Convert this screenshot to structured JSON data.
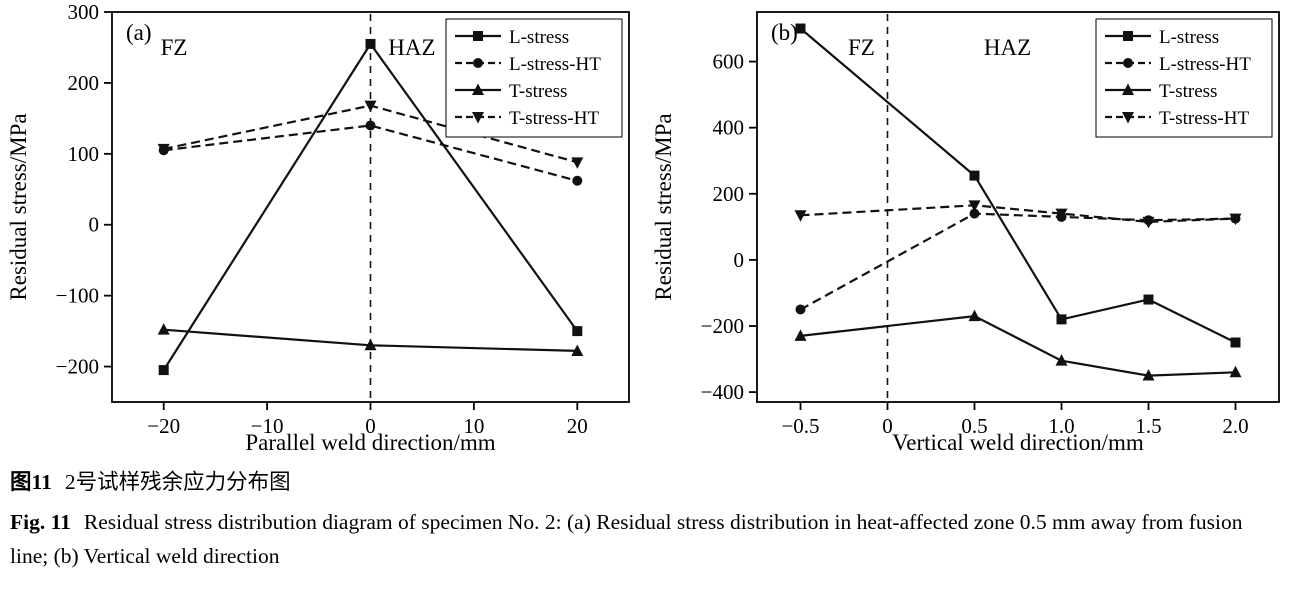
{
  "figure": {
    "caption_cn_label": "图11",
    "caption_cn_text": "2号试样残余应力分布图",
    "caption_en_label": "Fig. 11",
    "caption_en_text": "Residual stress distribution diagram of specimen No. 2: (a) Residual stress distribution in heat-affected zone 0.5 mm away from fusion line; (b) Vertical weld direction"
  },
  "colors": {
    "stroke": "#111111",
    "axis": "#000000",
    "background": "#ffffff"
  },
  "chart_data": [
    {
      "type": "line",
      "panel_label": "(a)",
      "title": "",
      "xlabel": "Parallel weld direction/mm",
      "ylabel": "Residual stress/MPa",
      "xlim": [
        -25,
        25
      ],
      "ylim": [
        -250,
        300
      ],
      "xticks": [
        -20,
        -10,
        0,
        10,
        20
      ],
      "xtick_labels": [
        "−20",
        "−10",
        "0",
        "10",
        "20"
      ],
      "yticks": [
        -200,
        -100,
        0,
        100,
        200,
        300
      ],
      "ytick_labels": [
        "−200",
        "−100",
        "0",
        "100",
        "200",
        "300"
      ],
      "grid": false,
      "legend_position": "top-right",
      "vline_x": 0,
      "zone_labels": [
        {
          "text": "FZ",
          "fx": 0.12,
          "fy": 0.11
        },
        {
          "text": "HAZ",
          "fx": 0.58,
          "fy": 0.11
        }
      ],
      "series": [
        {
          "name": "L-stress",
          "marker": "square",
          "line": "solid",
          "x": [
            -20,
            0,
            20
          ],
          "y": [
            -205,
            255,
            -150
          ]
        },
        {
          "name": "L-stress-HT",
          "marker": "circle",
          "line": "dashed",
          "x": [
            -20,
            0,
            20
          ],
          "y": [
            105,
            140,
            62
          ]
        },
        {
          "name": "T-stress",
          "marker": "triangle-up",
          "line": "solid",
          "x": [
            -20,
            0,
            20
          ],
          "y": [
            -148,
            -170,
            -178
          ]
        },
        {
          "name": "T-stress-HT",
          "marker": "triangle-down",
          "line": "dashed",
          "x": [
            -20,
            0,
            20
          ],
          "y": [
            107,
            168,
            88
          ]
        }
      ]
    },
    {
      "type": "line",
      "panel_label": "(b)",
      "title": "",
      "xlabel": "Vertical weld direction/mm",
      "ylabel": "Residual stress/MPa",
      "xlim": [
        -0.75,
        2.25
      ],
      "ylim": [
        -430,
        750
      ],
      "xticks": [
        -0.5,
        0,
        0.5,
        1.0,
        1.5,
        2.0
      ],
      "xtick_labels": [
        "−0.5",
        "0",
        "0.5",
        "1.0",
        "1.5",
        "2.0"
      ],
      "yticks": [
        -400,
        -200,
        0,
        200,
        400,
        600
      ],
      "ytick_labels": [
        "−400",
        "−200",
        "0",
        "200",
        "400",
        "600"
      ],
      "grid": false,
      "legend_position": "top-right",
      "vline_x": 0,
      "zone_labels": [
        {
          "text": "FZ",
          "fx": 0.2,
          "fy": 0.11
        },
        {
          "text": "HAZ",
          "fx": 0.48,
          "fy": 0.11
        }
      ],
      "series": [
        {
          "name": "L-stress",
          "marker": "square",
          "line": "solid",
          "x": [
            -0.5,
            0.5,
            1.0,
            1.5,
            2.0
          ],
          "y": [
            700,
            255,
            -180,
            -120,
            -250
          ]
        },
        {
          "name": "L-stress-HT",
          "marker": "circle",
          "line": "dashed",
          "x": [
            -0.5,
            0.5,
            1.0,
            1.5,
            2.0
          ],
          "y": [
            -150,
            140,
            130,
            120,
            125
          ]
        },
        {
          "name": "T-stress",
          "marker": "triangle-up",
          "line": "solid",
          "x": [
            -0.5,
            0.5,
            1.0,
            1.5,
            2.0
          ],
          "y": [
            -230,
            -170,
            -305,
            -350,
            -340
          ]
        },
        {
          "name": "T-stress-HT",
          "marker": "triangle-down",
          "line": "dashed",
          "x": [
            -0.5,
            0.5,
            1.0,
            1.5,
            2.0
          ],
          "y": [
            135,
            165,
            140,
            115,
            125
          ]
        }
      ]
    }
  ]
}
